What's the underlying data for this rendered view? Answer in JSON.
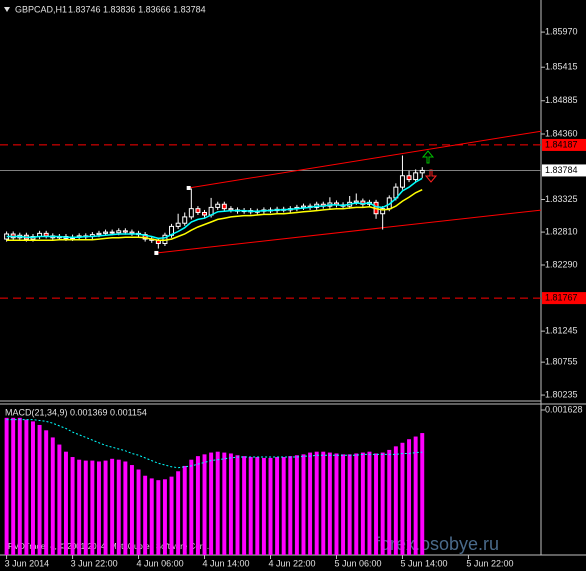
{
  "chart_data": [
    {
      "type": "candlestick",
      "title": "GBPCAD,H1",
      "ohlc_header": "1.83746 1.83836 1.83666 1.83784",
      "xlim": [
        -1,
        81
      ],
      "ylim": [
        1.80157,
        1.86398
      ],
      "yticks": [
        {
          "value": 1.8597,
          "label": "1.85970"
        },
        {
          "value": 1.85415,
          "label": "1.85415"
        },
        {
          "value": 1.84885,
          "label": "1.84885"
        },
        {
          "value": 1.8436,
          "label": "1.84360"
        },
        {
          "value": 1.83325,
          "label": "1.83325"
        },
        {
          "value": 1.8281,
          "label": "1.82810"
        },
        {
          "value": 1.8229,
          "label": "1.82290"
        },
        {
          "value": 1.81245,
          "label": "1.81245"
        },
        {
          "value": 1.80755,
          "label": "1.80755"
        },
        {
          "value": 1.80235,
          "label": "1.80235"
        }
      ],
      "up_color": "#000000",
      "down_color": "#ff0000",
      "wick_color": "#ffffff",
      "open": [
        1.827,
        1.8278,
        1.8272,
        1.8276,
        1.827,
        1.8274,
        1.8279,
        1.8275,
        1.8272,
        1.8274,
        1.8271,
        1.8273,
        1.8275,
        1.8274,
        1.8277,
        1.8279,
        1.8281,
        1.828,
        1.8283,
        1.8281,
        1.8279,
        1.8277,
        1.827,
        1.8268,
        1.8263,
        1.8276,
        1.829,
        1.8295,
        1.8305,
        1.8318,
        1.8312,
        1.8308,
        1.832,
        1.8325,
        1.8318,
        1.8316,
        1.8314,
        1.8315,
        1.8313,
        1.8314,
        1.8316,
        1.8315,
        1.8317,
        1.8316,
        1.8318,
        1.832,
        1.8322,
        1.832,
        1.8325,
        1.8322,
        1.8327,
        1.8324,
        1.8322,
        1.8328,
        1.833,
        1.8325,
        1.8328,
        1.831,
        1.8318,
        1.8335,
        1.8352,
        1.837,
        1.8364,
        1.83746
      ],
      "high": [
        1.8282,
        1.8282,
        1.828,
        1.828,
        1.8278,
        1.8283,
        1.8283,
        1.8279,
        1.8278,
        1.8278,
        1.8277,
        1.8279,
        1.8279,
        1.8281,
        1.8283,
        1.8285,
        1.8285,
        1.8287,
        1.8287,
        1.8285,
        1.8283,
        1.8281,
        1.8274,
        1.8272,
        1.828,
        1.8294,
        1.831,
        1.8312,
        1.835,
        1.8322,
        1.8316,
        1.8335,
        1.8329,
        1.8329,
        1.8322,
        1.832,
        1.8319,
        1.8319,
        1.8318,
        1.832,
        1.832,
        1.8321,
        1.8321,
        1.8322,
        1.8324,
        1.8326,
        1.8326,
        1.8329,
        1.8329,
        1.8336,
        1.8331,
        1.8328,
        1.8338,
        1.8342,
        1.8334,
        1.8332,
        1.8332,
        1.8322,
        1.8339,
        1.8358,
        1.8402,
        1.8378,
        1.838,
        1.83836
      ],
      "low": [
        1.8266,
        1.8268,
        1.8268,
        1.8266,
        1.8266,
        1.827,
        1.8271,
        1.8268,
        1.8268,
        1.8267,
        1.8267,
        1.8269,
        1.827,
        1.827,
        1.8273,
        1.8275,
        1.8276,
        1.8276,
        1.8277,
        1.8275,
        1.8273,
        1.8266,
        1.8264,
        1.8255,
        1.8259,
        1.8272,
        1.8286,
        1.8291,
        1.8301,
        1.8308,
        1.8304,
        1.8304,
        1.8316,
        1.8314,
        1.8312,
        1.831,
        1.831,
        1.8309,
        1.8309,
        1.831,
        1.8311,
        1.8311,
        1.8312,
        1.8312,
        1.8314,
        1.8316,
        1.8316,
        1.8316,
        1.8318,
        1.8318,
        1.832,
        1.8318,
        1.8318,
        1.8324,
        1.8321,
        1.8321,
        1.8302,
        1.8285,
        1.8314,
        1.8331,
        1.8348,
        1.836,
        1.836,
        1.83666
      ],
      "close": [
        1.8278,
        1.8272,
        1.8276,
        1.827,
        1.8274,
        1.8279,
        1.8275,
        1.8272,
        1.8274,
        1.8271,
        1.8273,
        1.8275,
        1.8274,
        1.8277,
        1.8279,
        1.8281,
        1.828,
        1.8283,
        1.8281,
        1.8279,
        1.8277,
        1.827,
        1.8268,
        1.8263,
        1.8276,
        1.829,
        1.8295,
        1.8305,
        1.8318,
        1.8312,
        1.8308,
        1.832,
        1.8325,
        1.8318,
        1.8316,
        1.8314,
        1.8315,
        1.8313,
        1.8314,
        1.8316,
        1.8315,
        1.8317,
        1.8316,
        1.8318,
        1.832,
        1.8322,
        1.832,
        1.8325,
        1.8322,
        1.8327,
        1.8324,
        1.8322,
        1.8328,
        1.833,
        1.8325,
        1.8328,
        1.831,
        1.8318,
        1.8335,
        1.8352,
        1.837,
        1.8364,
        1.83746,
        1.83784
      ],
      "lines": [
        {
          "color": "#ffff00",
          "values": [
            1.8268,
            1.8268,
            1.8268,
            1.8268,
            1.8268,
            1.8268,
            1.8268,
            1.8268,
            1.8269,
            1.8269,
            1.8269,
            1.8269,
            1.8269,
            1.8269,
            1.827,
            1.8271,
            1.8272,
            1.8272,
            1.8273,
            1.8273,
            1.8273,
            1.8272,
            1.827,
            1.8268,
            1.8268,
            1.827,
            1.8274,
            1.8278,
            1.8284,
            1.8289,
            1.8293,
            1.8297,
            1.8301,
            1.8303,
            1.8305,
            1.8306,
            1.8307,
            1.8307,
            1.8308,
            1.8309,
            1.8309,
            1.831,
            1.831,
            1.8311,
            1.8312,
            1.8313,
            1.8314,
            1.8315,
            1.8316,
            1.8317,
            1.8318,
            1.8318,
            1.8319,
            1.832,
            1.832,
            1.8321,
            1.8318,
            1.8316,
            1.8317,
            1.8322,
            1.833,
            1.8336,
            1.8343,
            1.8348
          ]
        },
        {
          "color": "#00ffff",
          "values": [
            1.8274,
            1.8274,
            1.8274,
            1.8273,
            1.8273,
            1.8274,
            1.8274,
            1.8274,
            1.8274,
            1.8273,
            1.8273,
            1.8273,
            1.8274,
            1.8274,
            1.8275,
            1.8276,
            1.8277,
            1.8278,
            1.8278,
            1.8278,
            1.8278,
            1.8276,
            1.8274,
            1.8271,
            1.8272,
            1.8277,
            1.8282,
            1.8288,
            1.8297,
            1.8301,
            1.8303,
            1.8308,
            1.8313,
            1.8314,
            1.8315,
            1.8315,
            1.8315,
            1.8314,
            1.8314,
            1.8315,
            1.8315,
            1.8316,
            1.8316,
            1.8317,
            1.8318,
            1.8319,
            1.832,
            1.8322,
            1.8322,
            1.8324,
            1.8324,
            1.8323,
            1.8325,
            1.8327,
            1.8326,
            1.8327,
            1.8321,
            1.832,
            1.8325,
            1.8334,
            1.8346,
            1.8352,
            1.836,
            1.8366
          ]
        }
      ],
      "channels": [
        {
          "color": "#ff0000",
          "x": [
            27.6,
            81.2
          ],
          "y": [
            1.83507,
            1.84407
          ]
        },
        {
          "color": "#ff0000",
          "x": [
            22.7,
            81.2
          ],
          "y": [
            1.8248,
            1.8316
          ]
        }
      ],
      "hlines": [
        {
          "value": 1.84187,
          "color": "#ff0000",
          "tag_fill": "#ff0000",
          "style": "dashed"
        },
        {
          "value": 1.83784,
          "color": "#808080",
          "tag_fill": "#ffffff",
          "style": "solid"
        },
        {
          "value": 1.81767,
          "color": "#ff0000",
          "tag_fill": "#ff0000",
          "style": "dashed"
        }
      ]
    },
    {
      "type": "macd",
      "title": "MACD(21,34,9) 0.001369 0.001154",
      "xlim": [
        -1,
        81
      ],
      "ylim": [
        0,
        0.001628
      ],
      "yticks": [
        0.001628
      ],
      "xticks": [
        {
          "value": 0,
          "label": "3 Jun 2014"
        },
        {
          "value": 10,
          "label": "3 Jun 22:00"
        },
        {
          "value": 20,
          "label": "4 Jun 06:00"
        },
        {
          "value": 30,
          "label": "4 Jun 14:00"
        },
        {
          "value": 40,
          "label": "4 Jun 22:00"
        },
        {
          "value": 50,
          "label": "5 Jun 06:00"
        },
        {
          "value": 60,
          "label": "5 Jun 14:00"
        },
        {
          "value": 70,
          "label": "5 Jun 22:00"
        }
      ],
      "series": [
        {
          "color": "#ff00ff",
          "values": [
            0.00154,
            0.00154,
            0.00154,
            0.00152,
            0.0015,
            0.00146,
            0.0014,
            0.00132,
            0.00124,
            0.00116,
            0.0011,
            0.00107,
            0.00106,
            0.00106,
            0.00105,
            0.00106,
            0.00108,
            0.00107,
            0.00105,
            0.00101,
            0.00096,
            0.00089,
            0.00086,
            0.00084,
            0.00085,
            0.00088,
            0.00094,
            0.001,
            0.00107,
            0.00111,
            0.00113,
            0.00115,
            0.00116,
            0.00115,
            0.00114,
            0.00112,
            0.00111,
            0.0011,
            0.0011,
            0.00109,
            0.00109,
            0.0011,
            0.0011,
            0.00111,
            0.00112,
            0.00113,
            0.00115,
            0.00116,
            0.00116,
            0.00115,
            0.00114,
            0.00113,
            0.00113,
            0.00114,
            0.00115,
            0.00116,
            0.00114,
            0.00115,
            0.00118,
            0.00122,
            0.00126,
            0.0013,
            0.00133,
            0.001369
          ]
        },
        {
          "color": "#00ffff",
          "values": [
            0.00152,
            0.00152,
            0.00152,
            0.00152,
            0.00152,
            0.00151,
            0.0015,
            0.00148,
            0.00145,
            0.00142,
            0.00138,
            0.00135,
            0.00132,
            0.00129,
            0.00126,
            0.00123,
            0.00121,
            0.00119,
            0.00117,
            0.00114,
            0.00112,
            0.00109,
            0.00106,
            0.00103,
            0.00101,
            0.00099,
            0.00098,
            0.00099,
            0.001,
            0.00102,
            0.00104,
            0.00106,
            0.00107,
            0.00108,
            0.00109,
            0.0011,
            0.0011,
            0.0011,
            0.0011,
            0.0011,
            0.0011,
            0.0011,
            0.0011,
            0.0011,
            0.0011,
            0.00111,
            0.00111,
            0.00112,
            0.00112,
            0.00112,
            0.00112,
            0.00112,
            0.00112,
            0.00112,
            0.00113,
            0.00113,
            0.00113,
            0.00113,
            0.00113,
            0.00113,
            0.00114,
            0.00114,
            0.00115,
            0.001154
          ]
        }
      ]
    }
  ],
  "copyright": "RVDTrader 4, © 2001-2014, MetaQuotes Software Corp.",
  "watermark": "forex.osobye.ru"
}
